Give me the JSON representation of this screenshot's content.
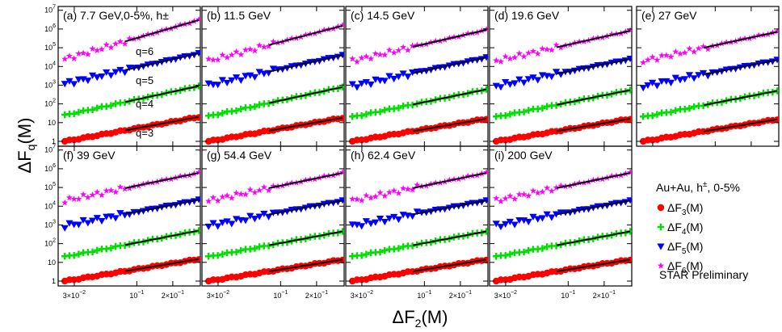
{
  "figure": {
    "ylabel": "ΔF_q(M)",
    "xlabel": "ΔF_2(M)",
    "ylabel_display": "ΔF",
    "ylabel_sub": "q",
    "ylabel_tail": "(M)",
    "xlabel_display": "ΔF",
    "xlabel_sub": "2",
    "xlabel_tail": "(M)"
  },
  "legend": {
    "title_main": "Au+Au, h",
    "title_sup": "±",
    "title_tail": ", 0-5%",
    "entries": [
      {
        "prefix": "ΔF",
        "sub": "3",
        "suffix": "(M)",
        "color": "#ff0000",
        "marker": "circle"
      },
      {
        "prefix": "ΔF",
        "sub": "4",
        "suffix": "(M)",
        "color": "#00dd00",
        "marker": "plus"
      },
      {
        "prefix": "ΔF",
        "sub": "5",
        "suffix": "(M)",
        "color": "#0000ff",
        "marker": "triangle-down"
      },
      {
        "prefix": "ΔF",
        "sub": "6",
        "suffix": "(M)",
        "color": "#ff00ff",
        "marker": "star"
      }
    ],
    "note": "STAR Preliminary"
  },
  "q_labels": [
    "q=6",
    "q=5",
    "q=4",
    "q=3"
  ],
  "axes": {
    "x_ticks": [
      {
        "value": 0.03,
        "base": "3×10",
        "exp": "−2"
      },
      {
        "value": 0.1,
        "base": "10",
        "exp": "−1"
      },
      {
        "value": 0.2,
        "base": "2×10",
        "exp": "−1"
      }
    ],
    "y_ticks": [
      {
        "value": 1,
        "base": "1",
        "exp": ""
      },
      {
        "value": 10,
        "base": "10",
        "exp": ""
      },
      {
        "value": 100,
        "base": "10",
        "exp": "2"
      },
      {
        "value": 1000,
        "base": "10",
        "exp": "3"
      },
      {
        "value": 10000,
        "base": "10",
        "exp": "4"
      },
      {
        "value": 100000,
        "base": "10",
        "exp": "5"
      },
      {
        "value": 1000000,
        "base": "10",
        "exp": "6"
      },
      {
        "value": 10000000,
        "base": "10",
        "exp": "7"
      }
    ]
  },
  "chart_data": [
    {
      "type": "scatter",
      "title": "(a) 7.7 GeV,0-5%, h±",
      "xscale": "log",
      "yscale": "log",
      "xlim": [
        0.022,
        0.34
      ],
      "ylim": [
        0.55,
        16000000.0
      ],
      "series": [
        {
          "name": "ΔF3(M)",
          "x_range": [
            0.025,
            0.33
          ],
          "y_range": [
            1.0,
            20
          ],
          "fit_x_range": [
            0.08,
            0.33
          ]
        },
        {
          "name": "ΔF4(M)",
          "x_range": [
            0.025,
            0.33
          ],
          "y_range": [
            25,
            900
          ],
          "fit_x_range": [
            0.08,
            0.33
          ]
        },
        {
          "name": "ΔF5(M)",
          "x_range": [
            0.025,
            0.33
          ],
          "y_range": [
            1200,
            50000
          ],
          "fit_x_range": [
            0.08,
            0.33
          ]
        },
        {
          "name": "ΔF6(M)",
          "x_range": [
            0.025,
            0.33
          ],
          "y_range": [
            25000,
            3000000
          ],
          "fit_x_range": [
            0.08,
            0.33
          ]
        }
      ]
    },
    {
      "type": "scatter",
      "title": "(b) 11.5 GeV",
      "xscale": "log",
      "yscale": "log",
      "xlim": [
        0.022,
        0.34
      ],
      "ylim": [
        0.55,
        16000000.0
      ],
      "series": [
        {
          "name": "ΔF3(M)",
          "x_range": [
            0.025,
            0.33
          ],
          "y_range": [
            1.0,
            18
          ],
          "fit_x_range": [
            0.08,
            0.33
          ]
        },
        {
          "name": "ΔF4(M)",
          "x_range": [
            0.025,
            0.33
          ],
          "y_range": [
            22,
            800
          ],
          "fit_x_range": [
            0.08,
            0.33
          ]
        },
        {
          "name": "ΔF5(M)",
          "x_range": [
            0.025,
            0.33
          ],
          "y_range": [
            1000,
            40000
          ],
          "fit_x_range": [
            0.08,
            0.33
          ]
        },
        {
          "name": "ΔF6(M)",
          "x_range": [
            0.025,
            0.33
          ],
          "y_range": [
            20000,
            1500000
          ],
          "fit_x_range": [
            0.08,
            0.33
          ]
        }
      ]
    },
    {
      "type": "scatter",
      "title": "(c) 14.5 GeV",
      "xscale": "log",
      "yscale": "log",
      "xlim": [
        0.022,
        0.34
      ],
      "ylim": [
        0.55,
        16000000.0
      ],
      "series": [
        {
          "name": "ΔF3(M)",
          "x_range": [
            0.025,
            0.33
          ],
          "y_range": [
            1.0,
            16
          ],
          "fit_x_range": [
            0.08,
            0.33
          ]
        },
        {
          "name": "ΔF4(M)",
          "x_range": [
            0.025,
            0.33
          ],
          "y_range": [
            20,
            600
          ],
          "fit_x_range": [
            0.08,
            0.33
          ]
        },
        {
          "name": "ΔF5(M)",
          "x_range": [
            0.025,
            0.33
          ],
          "y_range": [
            900,
            30000
          ],
          "fit_x_range": [
            0.08,
            0.33
          ]
        },
        {
          "name": "ΔF6(M)",
          "x_range": [
            0.025,
            0.33
          ],
          "y_range": [
            20000,
            900000
          ],
          "fit_x_range": [
            0.08,
            0.33
          ]
        }
      ]
    },
    {
      "type": "scatter",
      "title": "(d) 19.6 GeV",
      "xscale": "log",
      "yscale": "log",
      "xlim": [
        0.022,
        0.34
      ],
      "ylim": [
        0.55,
        16000000.0
      ],
      "series": [
        {
          "name": "ΔF3(M)",
          "x_range": [
            0.025,
            0.33
          ],
          "y_range": [
            1.0,
            16
          ],
          "fit_x_range": [
            0.08,
            0.33
          ]
        },
        {
          "name": "ΔF4(M)",
          "x_range": [
            0.025,
            0.33
          ],
          "y_range": [
            20,
            550
          ],
          "fit_x_range": [
            0.08,
            0.33
          ]
        },
        {
          "name": "ΔF5(M)",
          "x_range": [
            0.025,
            0.33
          ],
          "y_range": [
            900,
            25000
          ],
          "fit_x_range": [
            0.08,
            0.33
          ]
        },
        {
          "name": "ΔF6(M)",
          "x_range": [
            0.025,
            0.33
          ],
          "y_range": [
            20000,
            800000
          ],
          "fit_x_range": [
            0.08,
            0.33
          ]
        }
      ]
    },
    {
      "type": "scatter",
      "title": "(e) 27 GeV",
      "xscale": "log",
      "yscale": "log",
      "xlim": [
        0.022,
        0.34
      ],
      "ylim": [
        0.55,
        16000000.0
      ],
      "series": [
        {
          "name": "ΔF3(M)",
          "x_range": [
            0.025,
            0.33
          ],
          "y_range": [
            1.0,
            15
          ],
          "fit_x_range": [
            0.08,
            0.33
          ]
        },
        {
          "name": "ΔF4(M)",
          "x_range": [
            0.025,
            0.33
          ],
          "y_range": [
            20,
            500
          ],
          "fit_x_range": [
            0.08,
            0.33
          ]
        },
        {
          "name": "ΔF5(M)",
          "x_range": [
            0.025,
            0.33
          ],
          "y_range": [
            900,
            22000
          ],
          "fit_x_range": [
            0.08,
            0.33
          ]
        },
        {
          "name": "ΔF6(M)",
          "x_range": [
            0.025,
            0.33
          ],
          "y_range": [
            20000,
            700000
          ],
          "fit_x_range": [
            0.08,
            0.33
          ]
        }
      ]
    },
    {
      "type": "scatter",
      "title": "(f) 39 GeV",
      "xscale": "log",
      "yscale": "log",
      "xlim": [
        0.022,
        0.34
      ],
      "ylim": [
        0.55,
        16000000.0
      ],
      "series": [
        {
          "name": "ΔF3(M)",
          "x_range": [
            0.025,
            0.33
          ],
          "y_range": [
            1.0,
            15
          ],
          "fit_x_range": [
            0.08,
            0.33
          ]
        },
        {
          "name": "ΔF4(M)",
          "x_range": [
            0.025,
            0.33
          ],
          "y_range": [
            20,
            500
          ],
          "fit_x_range": [
            0.08,
            0.33
          ]
        },
        {
          "name": "ΔF5(M)",
          "x_range": [
            0.025,
            0.33
          ],
          "y_range": [
            900,
            22000
          ],
          "fit_x_range": [
            0.08,
            0.33
          ]
        },
        {
          "name": "ΔF6(M)",
          "x_range": [
            0.025,
            0.33
          ],
          "y_range": [
            20000,
            600000
          ],
          "fit_x_range": [
            0.08,
            0.33
          ]
        }
      ]
    },
    {
      "type": "scatter",
      "title": "(g) 54.4 GeV",
      "xscale": "log",
      "yscale": "log",
      "xlim": [
        0.022,
        0.34
      ],
      "ylim": [
        0.55,
        16000000.0
      ],
      "series": [
        {
          "name": "ΔF3(M)",
          "x_range": [
            0.025,
            0.33
          ],
          "y_range": [
            1.0,
            14
          ],
          "fit_x_range": [
            0.08,
            0.33
          ]
        },
        {
          "name": "ΔF4(M)",
          "x_range": [
            0.025,
            0.33
          ],
          "y_range": [
            20,
            450
          ],
          "fit_x_range": [
            0.08,
            0.33
          ]
        },
        {
          "name": "ΔF5(M)",
          "x_range": [
            0.025,
            0.33
          ],
          "y_range": [
            900,
            20000
          ],
          "fit_x_range": [
            0.08,
            0.33
          ]
        },
        {
          "name": "ΔF6(M)",
          "x_range": [
            0.025,
            0.33
          ],
          "y_range": [
            20000,
            600000
          ],
          "fit_x_range": [
            0.08,
            0.33
          ]
        }
      ]
    },
    {
      "type": "scatter",
      "title": "(h) 62.4 GeV",
      "xscale": "log",
      "yscale": "log",
      "xlim": [
        0.022,
        0.34
      ],
      "ylim": [
        0.55,
        16000000.0
      ],
      "series": [
        {
          "name": "ΔF3(M)",
          "x_range": [
            0.025,
            0.33
          ],
          "y_range": [
            1.0,
            14
          ],
          "fit_x_range": [
            0.08,
            0.33
          ]
        },
        {
          "name": "ΔF4(M)",
          "x_range": [
            0.025,
            0.33
          ],
          "y_range": [
            20,
            450
          ],
          "fit_x_range": [
            0.08,
            0.33
          ]
        },
        {
          "name": "ΔF5(M)",
          "x_range": [
            0.025,
            0.33
          ],
          "y_range": [
            900,
            20000
          ],
          "fit_x_range": [
            0.08,
            0.33
          ]
        },
        {
          "name": "ΔF6(M)",
          "x_range": [
            0.025,
            0.33
          ],
          "y_range": [
            20000,
            600000
          ],
          "fit_x_range": [
            0.08,
            0.33
          ]
        }
      ]
    },
    {
      "type": "scatter",
      "title": "(i) 200 GeV",
      "xscale": "log",
      "yscale": "log",
      "xlim": [
        0.022,
        0.34
      ],
      "ylim": [
        0.55,
        16000000.0
      ],
      "series": [
        {
          "name": "ΔF3(M)",
          "x_range": [
            0.025,
            0.33
          ],
          "y_range": [
            1.0,
            14
          ],
          "fit_x_range": [
            0.08,
            0.33
          ]
        },
        {
          "name": "ΔF4(M)",
          "x_range": [
            0.025,
            0.33
          ],
          "y_range": [
            20,
            450
          ],
          "fit_x_range": [
            0.08,
            0.33
          ]
        },
        {
          "name": "ΔF5(M)",
          "x_range": [
            0.025,
            0.33
          ],
          "y_range": [
            900,
            20000
          ],
          "fit_x_range": [
            0.08,
            0.33
          ]
        },
        {
          "name": "ΔF6(M)",
          "x_range": [
            0.025,
            0.33
          ],
          "y_range": [
            20000,
            600000
          ],
          "fit_x_range": [
            0.08,
            0.33
          ]
        }
      ]
    }
  ]
}
